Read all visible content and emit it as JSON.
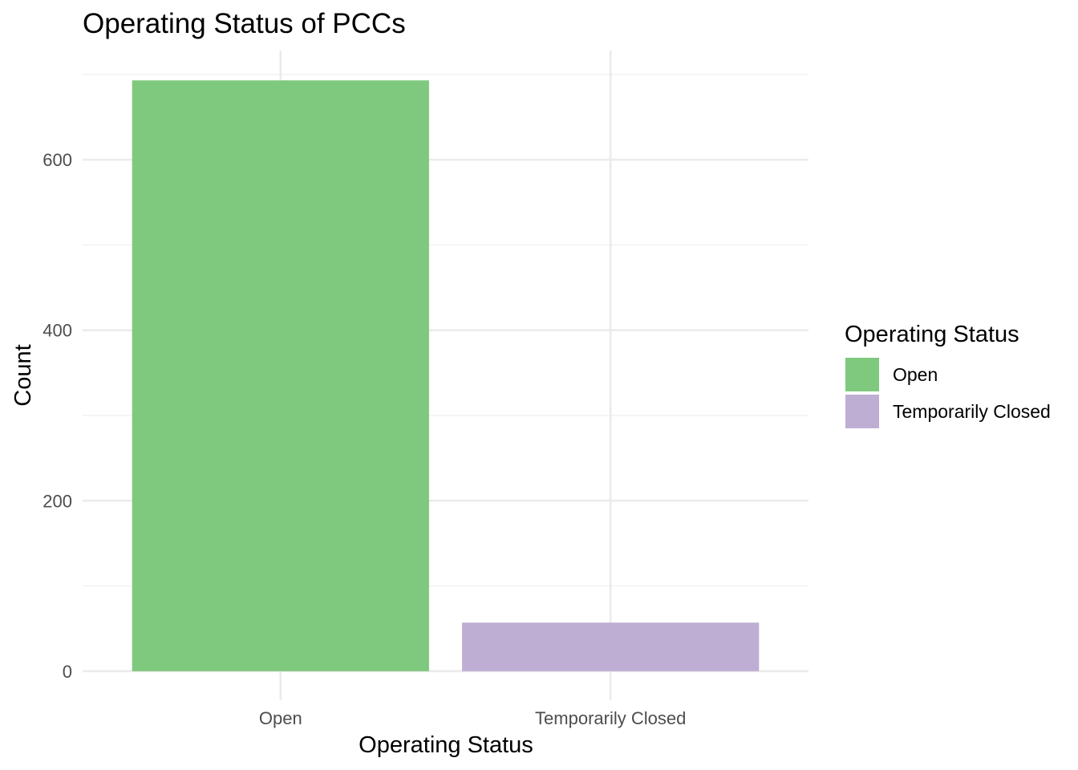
{
  "chart_data": {
    "type": "bar",
    "title": "Operating Status of PCCs",
    "xlabel": "Operating Status",
    "ylabel": "Count",
    "categories": [
      "Open",
      "Temporarily Closed"
    ],
    "values": [
      693,
      57
    ],
    "colors": [
      "#7fc97f",
      "#beaed4"
    ],
    "yticks": [
      0,
      200,
      400,
      600
    ],
    "ylim": [
      -34,
      728
    ],
    "grid": true,
    "legend": {
      "title": "Operating Status",
      "placement": "right",
      "entries": [
        {
          "label": "Open",
          "color": "#7fc97f"
        },
        {
          "label": "Temporarily Closed",
          "color": "#beaed4"
        }
      ]
    }
  }
}
